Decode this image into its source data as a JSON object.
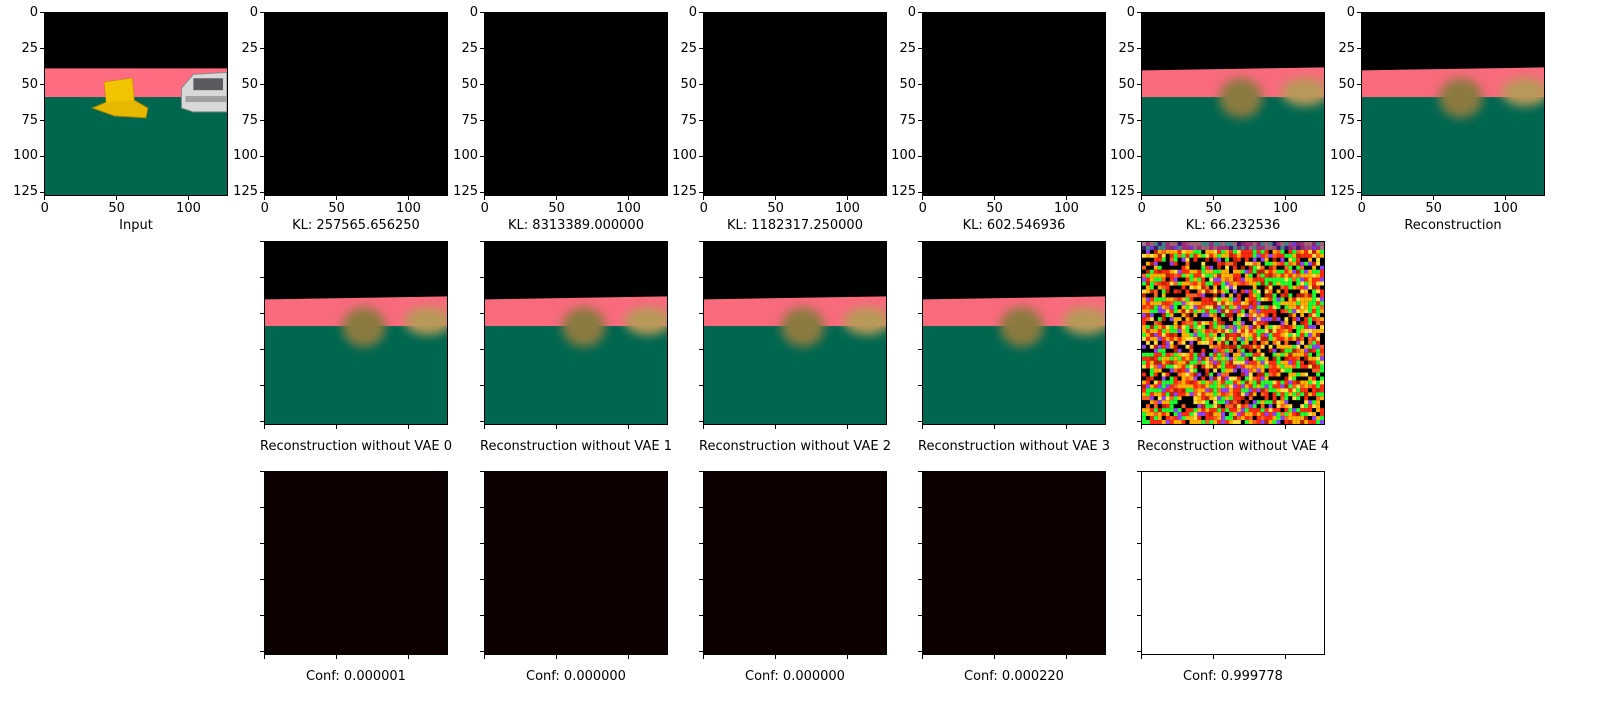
{
  "axes": {
    "ytick_labels": [
      "0",
      "25",
      "50",
      "75",
      "100",
      "125"
    ],
    "xtick_labels": [
      "0",
      "50",
      "100"
    ]
  },
  "row1": [
    {
      "caption": "Input",
      "kind": "input"
    },
    {
      "caption": "KL: 257565.656250",
      "kind": "black"
    },
    {
      "caption": "KL: 8313389.000000",
      "kind": "black"
    },
    {
      "caption": "KL: 1182317.250000",
      "kind": "black"
    },
    {
      "caption": "KL: 602.546936",
      "kind": "black"
    },
    {
      "caption": "KL: 66.232536",
      "kind": "recon"
    },
    {
      "caption": "Reconstruction",
      "kind": "recon"
    }
  ],
  "row2": [
    {
      "caption": "Reconstruction without VAE 0",
      "kind": "recon"
    },
    {
      "caption": "Reconstruction without VAE 1",
      "kind": "recon"
    },
    {
      "caption": "Reconstruction without VAE 2",
      "kind": "recon"
    },
    {
      "caption": "Reconstruction without VAE 3",
      "kind": "recon"
    },
    {
      "caption": "Reconstruction without VAE 4",
      "kind": "noise"
    }
  ],
  "row3": [
    {
      "caption": "Conf: 0.000001",
      "kind": "dark"
    },
    {
      "caption": "Conf: 0.000000",
      "kind": "dark"
    },
    {
      "caption": "Conf: 0.000000",
      "kind": "dark"
    },
    {
      "caption": "Conf: 0.000220",
      "kind": "dark"
    },
    {
      "caption": "Conf: 0.999778",
      "kind": "white"
    }
  ]
}
